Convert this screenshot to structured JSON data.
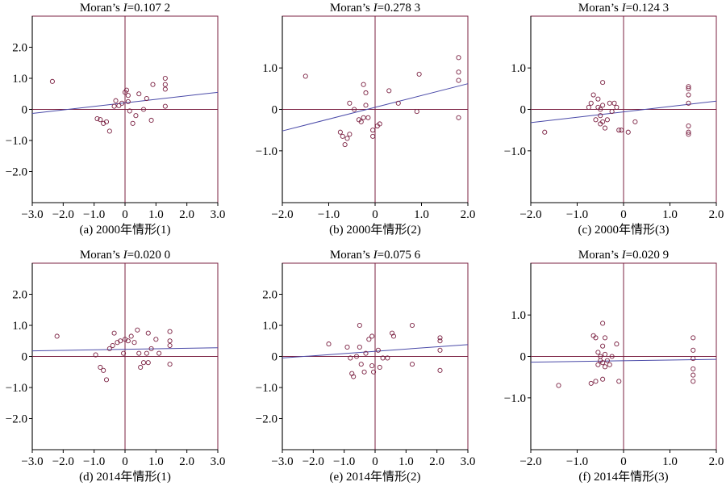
{
  "figure": {
    "axis_color": "#7b2142",
    "point_color": "#7b2142",
    "line_color": "#4a4aa8"
  },
  "chart_data": [
    {
      "type": "scatter",
      "title_prefix": "Moran’s ",
      "title_var": "I",
      "title_suffix": "=0.107 2",
      "caption": "(a) 2000年情形(1)",
      "xlim": [
        -3.0,
        3.0
      ],
      "ylim": [
        -3.0,
        3.0
      ],
      "xticks": [
        -3.0,
        -2.0,
        -1.0,
        0,
        1.0,
        2.0,
        3.0
      ],
      "xtick_labels": [
        "−3.0",
        "−2.0",
        "−1.0",
        "0",
        "1.0",
        "2.0",
        "3.0"
      ],
      "yticks": [
        2.0,
        1.0,
        0,
        -1.0,
        -2.0
      ],
      "ytick_labels": [
        "2.0",
        "1.0",
        "0",
        "−1.0",
        "−2.0"
      ],
      "fit_line": [
        [
          -3.0,
          -0.13
        ],
        [
          3.0,
          0.55
        ]
      ],
      "points": [
        [
          -2.35,
          0.9
        ],
        [
          -0.9,
          -0.3
        ],
        [
          -0.8,
          -0.33
        ],
        [
          -0.7,
          -0.45
        ],
        [
          -0.6,
          -0.4
        ],
        [
          -0.5,
          -0.7
        ],
        [
          -0.3,
          0.28
        ],
        [
          -0.35,
          0.1
        ],
        [
          -0.2,
          0.12
        ],
        [
          -0.1,
          0.2
        ],
        [
          0,
          0.55
        ],
        [
          0.05,
          0.62
        ],
        [
          0.1,
          0.45
        ],
        [
          0.1,
          0.25
        ],
        [
          0.15,
          -0.05
        ],
        [
          0.25,
          -0.45
        ],
        [
          0.35,
          -0.2
        ],
        [
          0.45,
          0.5
        ],
        [
          0.6,
          0.0
        ],
        [
          0.7,
          0.35
        ],
        [
          0.85,
          -0.35
        ],
        [
          0.9,
          0.8
        ],
        [
          1.3,
          1.0
        ],
        [
          1.3,
          0.8
        ],
        [
          1.3,
          0.65
        ],
        [
          1.3,
          0.1
        ]
      ]
    },
    {
      "type": "scatter",
      "title_prefix": "Moran’s ",
      "title_var": "I",
      "title_suffix": "=0.278 3",
      "caption": "(b) 2000年情形(2)",
      "xlim": [
        -2.0,
        2.0
      ],
      "ylim": [
        -2.25,
        2.25
      ],
      "xticks": [
        -2.0,
        -1.0,
        0,
        1.0,
        2.0
      ],
      "xtick_labels": [
        "−2.0",
        "−1.0",
        "0",
        "1.0",
        "2.0"
      ],
      "yticks": [
        1.0,
        0,
        -1.0
      ],
      "ytick_labels": [
        "1.0",
        "0",
        "−1.0"
      ],
      "fit_line": [
        [
          -2.0,
          -0.52
        ],
        [
          2.0,
          0.62
        ]
      ],
      "points": [
        [
          -1.5,
          0.8
        ],
        [
          -0.75,
          -0.55
        ],
        [
          -0.7,
          -0.65
        ],
        [
          -0.65,
          -0.85
        ],
        [
          -0.6,
          -0.7
        ],
        [
          -0.55,
          -0.6
        ],
        [
          -0.55,
          0.15
        ],
        [
          -0.45,
          0.0
        ],
        [
          -0.35,
          -0.25
        ],
        [
          -0.3,
          -0.3
        ],
        [
          -0.25,
          -0.2
        ],
        [
          -0.25,
          0.6
        ],
        [
          -0.2,
          0.4
        ],
        [
          -0.2,
          0.1
        ],
        [
          -0.15,
          -0.2
        ],
        [
          -0.05,
          -0.5
        ],
        [
          -0.05,
          -0.65
        ],
        [
          0.05,
          -0.4
        ],
        [
          0.1,
          -0.35
        ],
        [
          0.3,
          0.45
        ],
        [
          0.5,
          0.15
        ],
        [
          0.9,
          -0.05
        ],
        [
          0.95,
          0.85
        ],
        [
          1.8,
          1.25
        ],
        [
          1.8,
          0.9
        ],
        [
          1.8,
          0.7
        ],
        [
          1.8,
          -0.2
        ]
      ]
    },
    {
      "type": "scatter",
      "title_prefix": "Moran’s ",
      "title_var": "I",
      "title_suffix": "=0.124 3",
      "caption": "(c) 2000年情形(3)",
      "xlim": [
        -2.0,
        2.0
      ],
      "ylim": [
        -2.25,
        2.25
      ],
      "xticks": [
        -2.0,
        -1.0,
        0,
        1.0,
        2.0
      ],
      "xtick_labels": [
        "−2.0",
        "−1.0",
        "0",
        "1.0",
        "2.0"
      ],
      "yticks": [
        1.0,
        0,
        -1.0
      ],
      "ytick_labels": [
        "1.0",
        "0",
        "−1.0"
      ],
      "fit_line": [
        [
          -2.0,
          -0.32
        ],
        [
          2.0,
          0.2
        ]
      ],
      "points": [
        [
          -1.7,
          -0.55
        ],
        [
          -0.75,
          0.05
        ],
        [
          -0.7,
          0.15
        ],
        [
          -0.65,
          0.35
        ],
        [
          -0.6,
          -0.25
        ],
        [
          -0.55,
          0.25
        ],
        [
          -0.55,
          0.05
        ],
        [
          -0.5,
          -0.15
        ],
        [
          -0.5,
          0.0
        ],
        [
          -0.5,
          -0.35
        ],
        [
          -0.45,
          0.65
        ],
        [
          -0.45,
          0.1
        ],
        [
          -0.45,
          -0.3
        ],
        [
          -0.4,
          -0.45
        ],
        [
          -0.35,
          -0.25
        ],
        [
          -0.3,
          0.15
        ],
        [
          -0.25,
          -0.05
        ],
        [
          -0.2,
          0.15
        ],
        [
          -0.15,
          0.05
        ],
        [
          -0.1,
          -0.5
        ],
        [
          -0.05,
          -0.5
        ],
        [
          0.1,
          -0.55
        ],
        [
          0.25,
          -0.3
        ],
        [
          1.4,
          0.55
        ],
        [
          1.4,
          0.5
        ],
        [
          1.4,
          0.35
        ],
        [
          1.4,
          0.15
        ],
        [
          1.4,
          -0.4
        ],
        [
          1.4,
          -0.55
        ],
        [
          1.4,
          -0.6
        ]
      ]
    },
    {
      "type": "scatter",
      "title_prefix": "Moran’s ",
      "title_var": "I",
      "title_suffix": "=0.020 0",
      "caption": "(d) 2014年情形(1)",
      "xlim": [
        -3.0,
        3.0
      ],
      "ylim": [
        -3.0,
        3.0
      ],
      "xticks": [
        -3.0,
        -2.0,
        -1.0,
        0,
        1.0,
        2.0,
        3.0
      ],
      "xtick_labels": [
        "−3.0",
        "−2.0",
        "−1.0",
        "0",
        "1.0",
        "2.0",
        "3.0"
      ],
      "yticks": [
        2.0,
        1.0,
        0,
        -1.0,
        -2.0
      ],
      "ytick_labels": [
        "2.0",
        "1.0",
        "0",
        "−1.0",
        "−2.0"
      ],
      "fit_line": [
        [
          -3.0,
          0.18
        ],
        [
          3.0,
          0.28
        ]
      ],
      "points": [
        [
          -2.2,
          0.65
        ],
        [
          -0.95,
          0.05
        ],
        [
          -0.8,
          -0.35
        ],
        [
          -0.7,
          -0.45
        ],
        [
          -0.6,
          -0.75
        ],
        [
          -0.5,
          0.25
        ],
        [
          -0.4,
          0.35
        ],
        [
          -0.35,
          0.75
        ],
        [
          -0.25,
          0.45
        ],
        [
          -0.15,
          0.5
        ],
        [
          -0.05,
          0.1
        ],
        [
          0,
          0.55
        ],
        [
          0.1,
          0.5
        ],
        [
          0.2,
          0.65
        ],
        [
          0.3,
          0.45
        ],
        [
          0.4,
          0.85
        ],
        [
          0.45,
          0.1
        ],
        [
          0.5,
          -0.35
        ],
        [
          0.6,
          -0.2
        ],
        [
          0.7,
          0.1
        ],
        [
          0.75,
          0.75
        ],
        [
          0.75,
          -0.2
        ],
        [
          0.85,
          0.25
        ],
        [
          1.0,
          0.55
        ],
        [
          1.1,
          0.1
        ],
        [
          1.45,
          0.8
        ],
        [
          1.45,
          0.5
        ],
        [
          1.45,
          0.35
        ],
        [
          1.45,
          -0.25
        ]
      ]
    },
    {
      "type": "scatter",
      "title_prefix": "Moran’s ",
      "title_var": "I",
      "title_suffix": "=0.075 6",
      "caption": "(e) 2014年情形(2)",
      "xlim": [
        -3.0,
        3.0
      ],
      "ylim": [
        -3.0,
        3.0
      ],
      "xticks": [
        -3.0,
        -2.0,
        -1.0,
        0,
        1.0,
        2.0,
        3.0
      ],
      "xtick_labels": [
        "−3.0",
        "−2.0",
        "−1.0",
        "0",
        "1.0",
        "2.0",
        "3.0"
      ],
      "yticks": [
        2.0,
        1.0,
        0,
        -1.0,
        -2.0
      ],
      "ytick_labels": [
        "2.0",
        "1.0",
        "0",
        "−1.0",
        "−2.0"
      ],
      "fit_line": [
        [
          -3.0,
          -0.05
        ],
        [
          3.0,
          0.38
        ]
      ],
      "points": [
        [
          -1.5,
          0.4
        ],
        [
          -0.9,
          0.3
        ],
        [
          -0.8,
          -0.05
        ],
        [
          -0.75,
          -0.55
        ],
        [
          -0.7,
          -0.65
        ],
        [
          -0.6,
          0.0
        ],
        [
          -0.5,
          1.0
        ],
        [
          -0.5,
          0.3
        ],
        [
          -0.45,
          -0.25
        ],
        [
          -0.35,
          -0.5
        ],
        [
          -0.3,
          0.1
        ],
        [
          -0.2,
          0.55
        ],
        [
          -0.1,
          0.65
        ],
        [
          -0.1,
          -0.3
        ],
        [
          -0.05,
          -0.5
        ],
        [
          0.1,
          0.2
        ],
        [
          0.15,
          -0.35
        ],
        [
          0.25,
          -0.05
        ],
        [
          0.4,
          -0.05
        ],
        [
          0.55,
          0.75
        ],
        [
          0.6,
          0.65
        ],
        [
          1.2,
          1.0
        ],
        [
          1.2,
          -0.25
        ],
        [
          2.1,
          0.6
        ],
        [
          2.1,
          0.5
        ],
        [
          2.1,
          0.2
        ],
        [
          2.1,
          -0.45
        ]
      ]
    },
    {
      "type": "scatter",
      "title_prefix": "Moran’s ",
      "title_var": "I",
      "title_suffix": "=0.020 9",
      "caption": "(f) 2014年情形(3)",
      "xlim": [
        -2.0,
        2.0
      ],
      "ylim": [
        -2.25,
        2.25
      ],
      "xticks": [
        -2.0,
        -1.0,
        0,
        1.0,
        2.0
      ],
      "xtick_labels": [
        "−2.0",
        "−1.0",
        "0",
        "1.0",
        "2.0"
      ],
      "yticks": [
        1.0,
        0,
        -1.0
      ],
      "ytick_labels": [
        "1.0",
        "0",
        "−1.0"
      ],
      "fit_line": [
        [
          -2.0,
          -0.14
        ],
        [
          2.0,
          -0.07
        ]
      ],
      "points": [
        [
          -1.4,
          -0.7
        ],
        [
          -0.7,
          -0.65
        ],
        [
          -0.65,
          0.5
        ],
        [
          -0.6,
          0.45
        ],
        [
          -0.6,
          -0.6
        ],
        [
          -0.55,
          0.1
        ],
        [
          -0.55,
          -0.2
        ],
        [
          -0.5,
          0.0
        ],
        [
          -0.5,
          -0.1
        ],
        [
          -0.45,
          0.8
        ],
        [
          -0.45,
          0.25
        ],
        [
          -0.45,
          -0.15
        ],
        [
          -0.45,
          -0.55
        ],
        [
          -0.4,
          0.45
        ],
        [
          -0.4,
          0.05
        ],
        [
          -0.4,
          -0.25
        ],
        [
          -0.35,
          -0.1
        ],
        [
          -0.3,
          -0.2
        ],
        [
          -0.25,
          0.0
        ],
        [
          -0.15,
          0.3
        ],
        [
          -0.1,
          -0.6
        ],
        [
          1.5,
          0.45
        ],
        [
          1.5,
          0.15
        ],
        [
          1.5,
          -0.05
        ],
        [
          1.5,
          -0.3
        ],
        [
          1.5,
          -0.45
        ],
        [
          1.5,
          -0.6
        ]
      ]
    }
  ]
}
